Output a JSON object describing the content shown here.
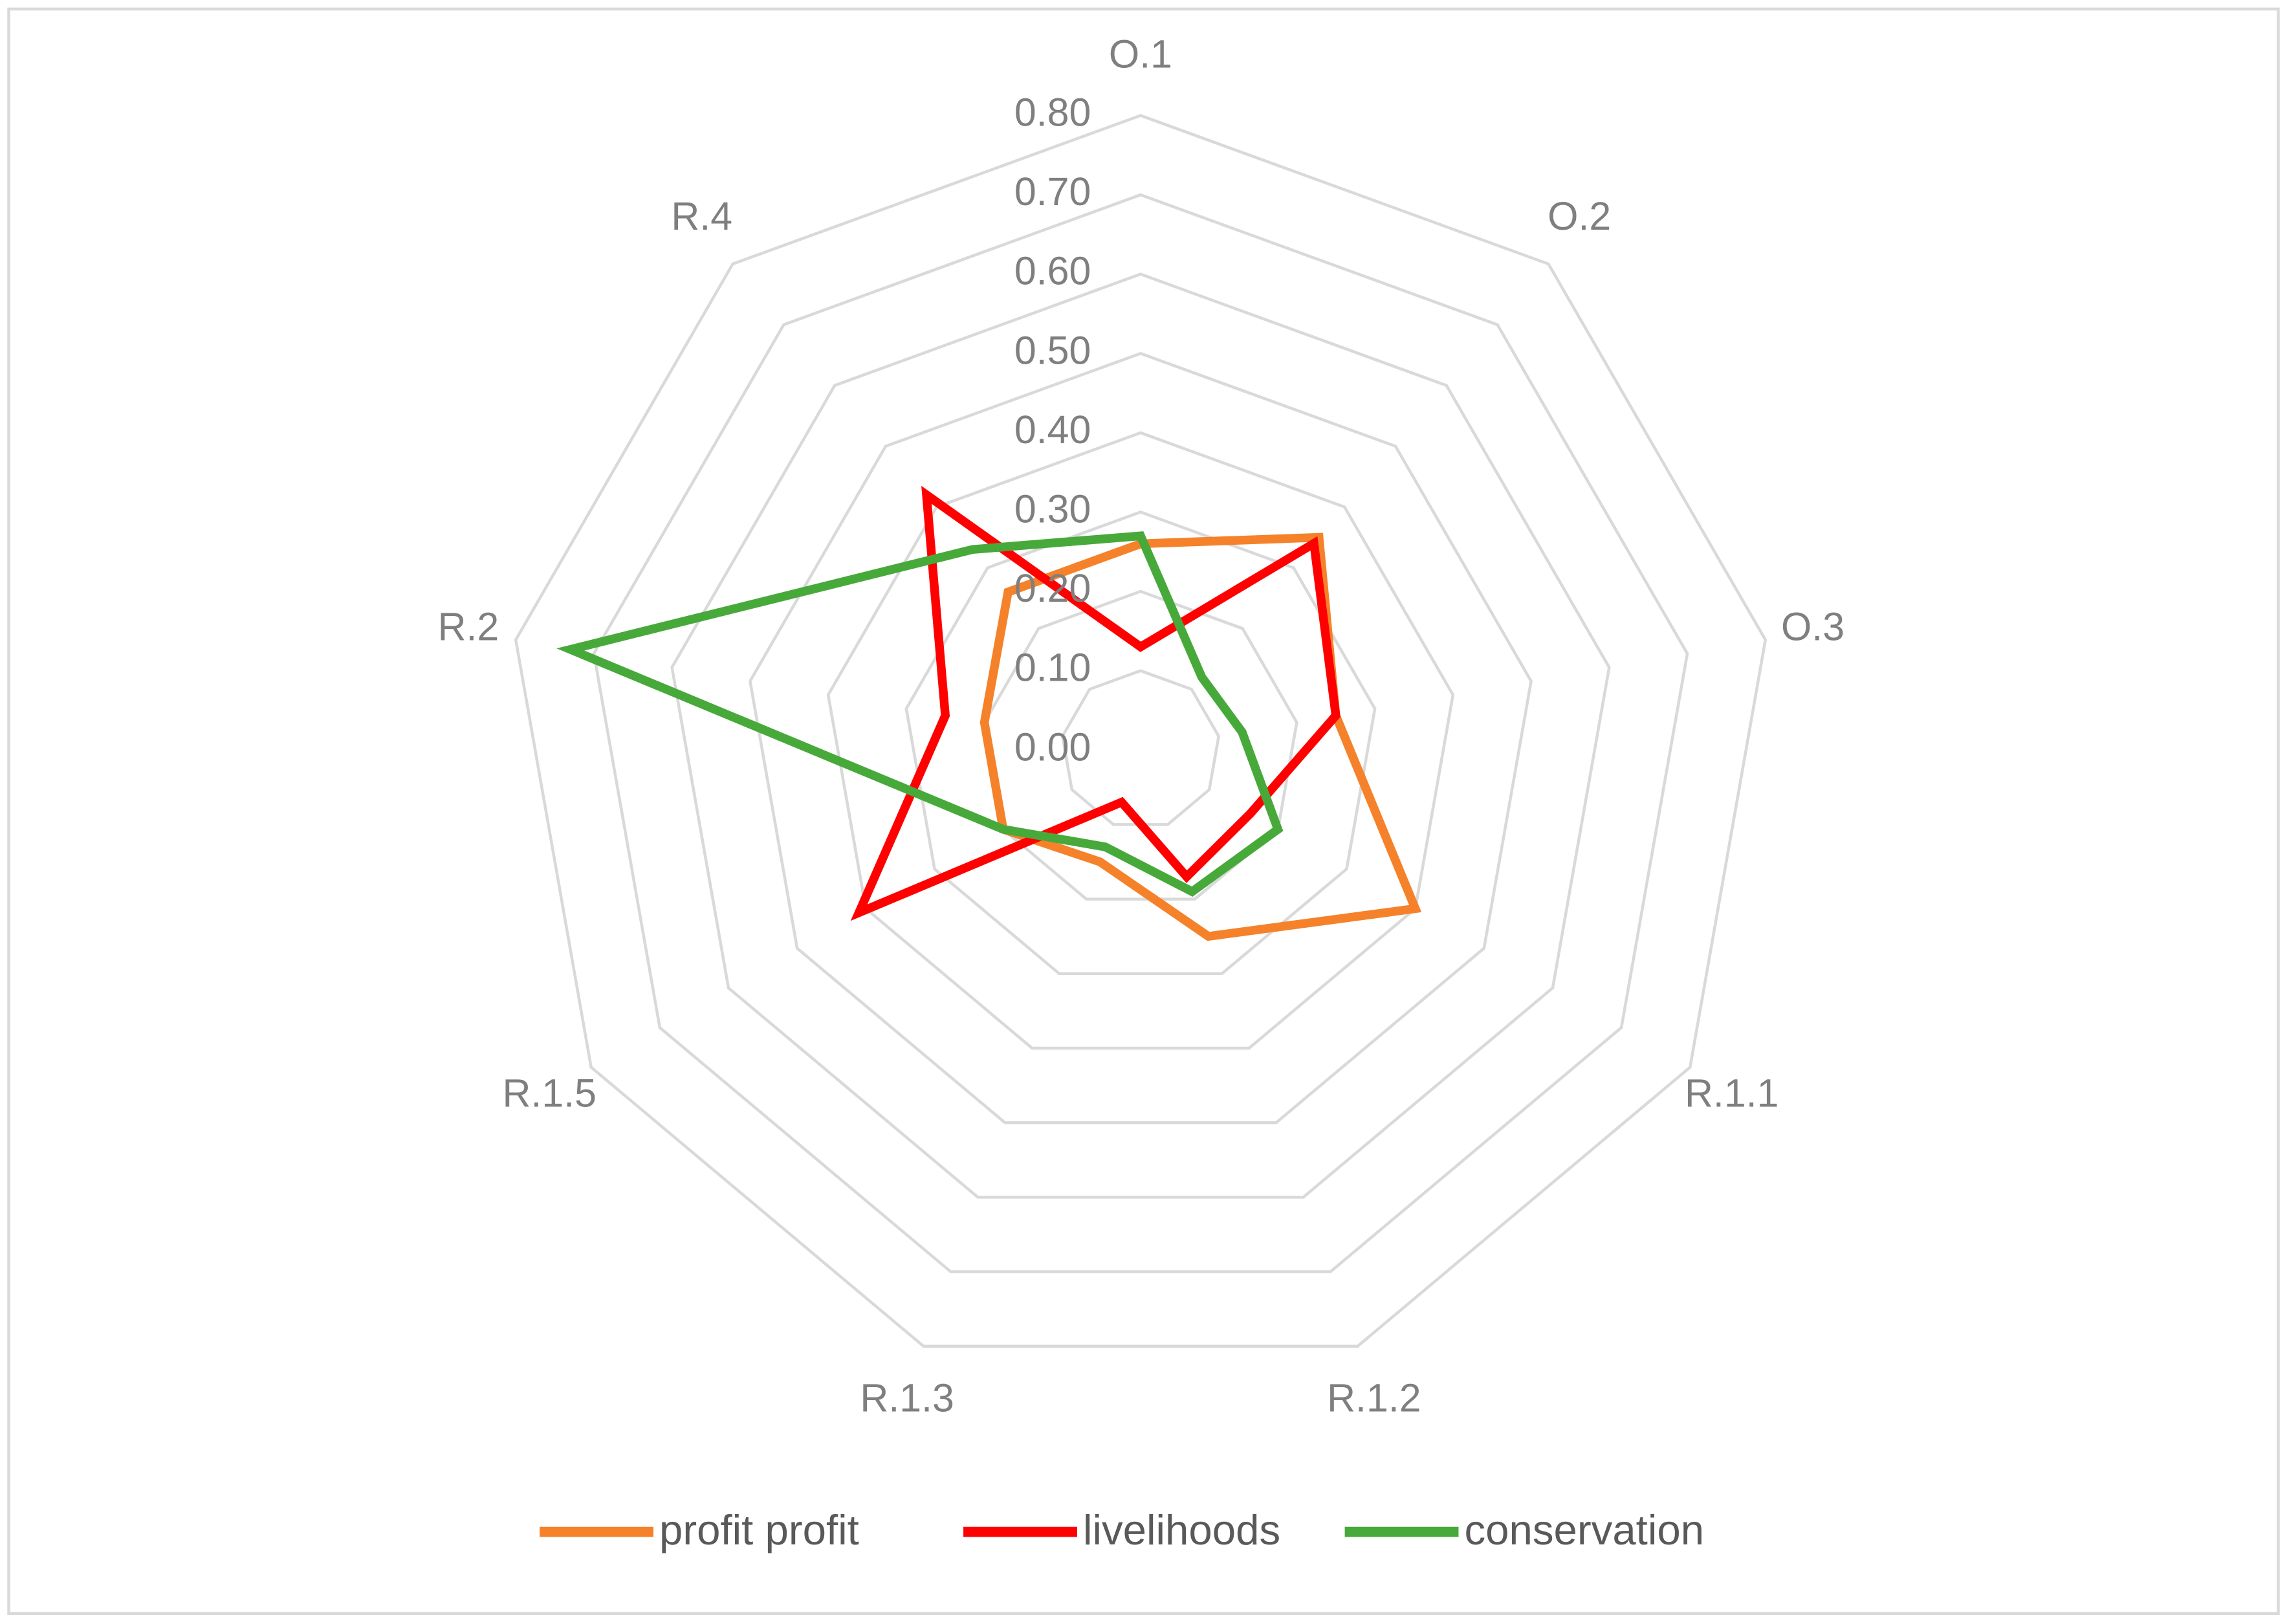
{
  "chart_data": {
    "type": "radar",
    "categories": [
      "O.1",
      "O.2",
      "O.3",
      "R.1.1",
      "R.1.2",
      "R.1.3",
      "R.1.5",
      "R.2",
      "R.4"
    ],
    "series": [
      {
        "name": "profit profit",
        "color": "#f5822a",
        "values": [
          0.26,
          0.35,
          0.25,
          0.4,
          0.25,
          0.15,
          0.2,
          0.2,
          0.26
        ]
      },
      {
        "name": "livelihoods",
        "color": "#ff0000",
        "values": [
          0.13,
          0.34,
          0.25,
          0.16,
          0.17,
          0.07,
          0.41,
          0.25,
          0.42
        ]
      },
      {
        "name": "conservation",
        "color": "#47a93a",
        "values": [
          0.27,
          0.12,
          0.13,
          0.2,
          0.19,
          0.13,
          0.2,
          0.73,
          0.33
        ]
      }
    ],
    "ylim": [
      0,
      0.8
    ],
    "yticks": [
      {
        "value": 0,
        "label": "0.00"
      },
      {
        "value": 0.1,
        "label": "0.10"
      },
      {
        "value": 0.2,
        "label": "0.20"
      },
      {
        "value": 0.3,
        "label": "0.30"
      },
      {
        "value": 0.4,
        "label": "0.40"
      },
      {
        "value": 0.5,
        "label": "0.50"
      },
      {
        "value": 0.6,
        "label": "0.60"
      },
      {
        "value": 0.7,
        "label": "0.70"
      },
      {
        "value": 0.8,
        "label": "0.80"
      }
    ],
    "grid": true,
    "legend": "bottom"
  }
}
